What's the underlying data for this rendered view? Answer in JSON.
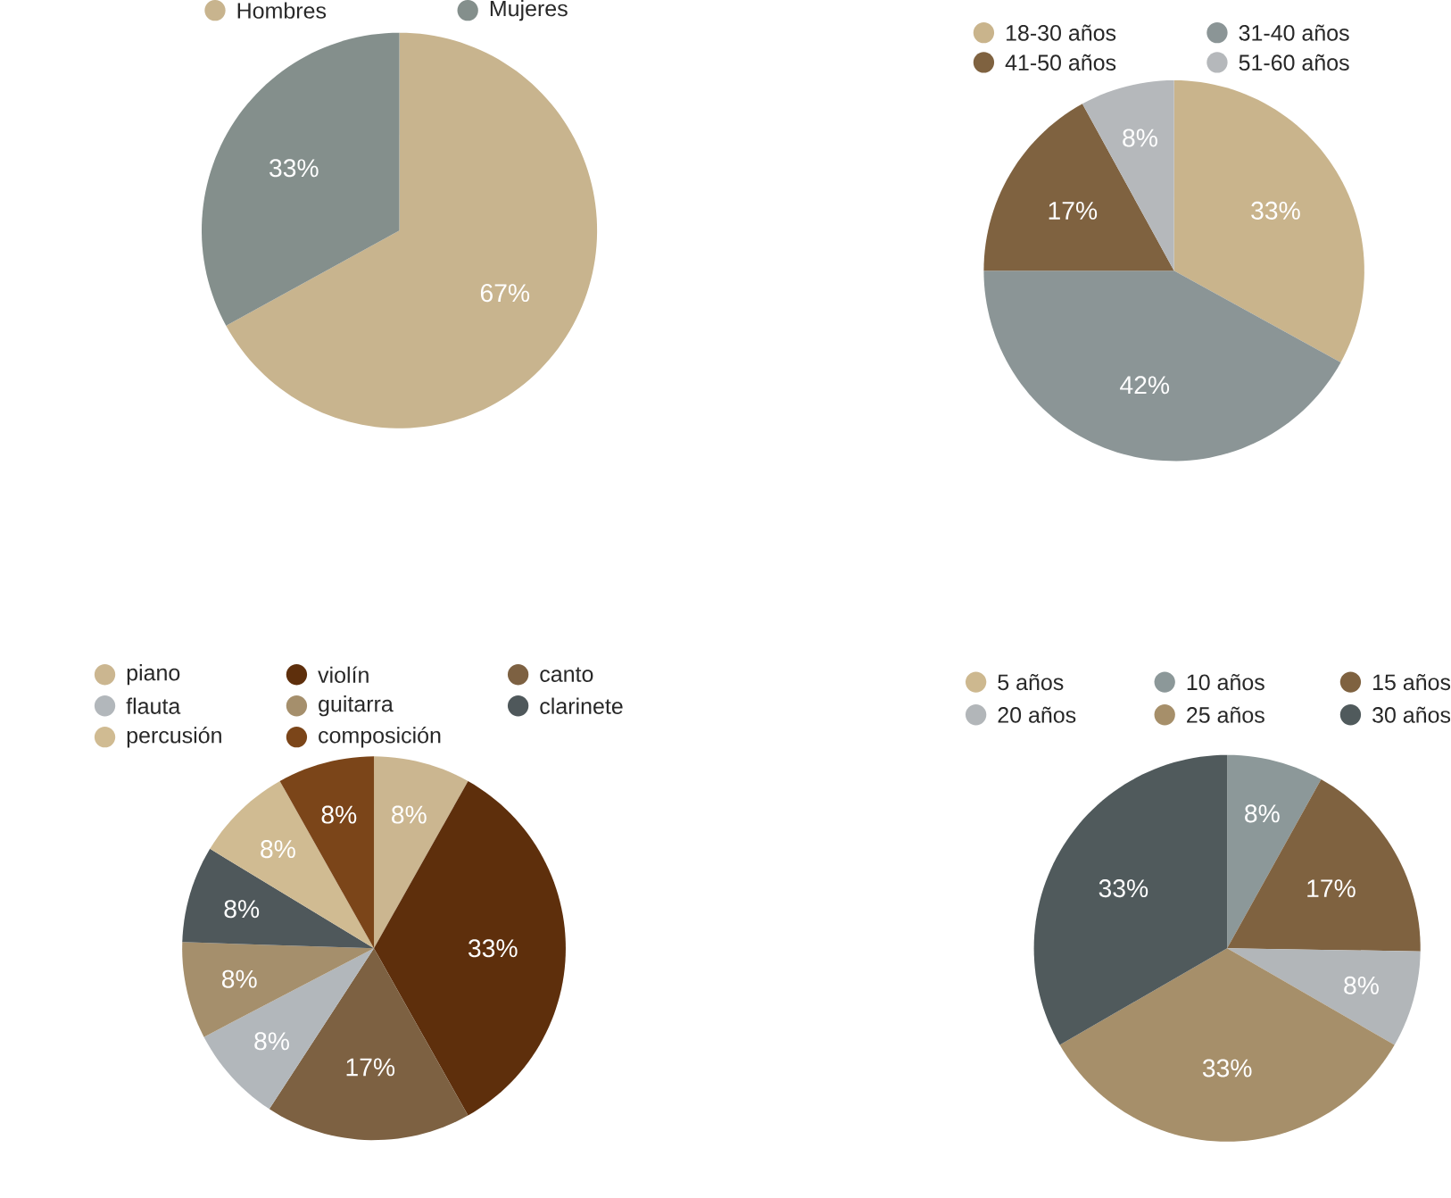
{
  "chart_data": [
    {
      "type": "pie",
      "categories": [
        "Hombres",
        "Mujeres"
      ],
      "values": [
        67,
        33
      ],
      "colors": [
        "#c8b48e",
        "#848f8c"
      ],
      "value_labels": [
        "67%",
        "33%"
      ],
      "legend": "top"
    },
    {
      "type": "pie",
      "categories": [
        "18-30 años",
        "31-40 años",
        "41-50 años",
        "51-60 años"
      ],
      "values": [
        33,
        42,
        17,
        8
      ],
      "colors": [
        "#c9b48c",
        "#8b9596",
        "#7f6240",
        "#b5b8bb"
      ],
      "value_labels": [
        "33%",
        "42%",
        "17%",
        "8%"
      ],
      "legend": "top"
    },
    {
      "type": "pie",
      "categories": [
        "piano",
        "violín",
        "canto",
        "flauta",
        "guitarra",
        "clarinete",
        "percusión",
        "composición"
      ],
      "values": [
        8,
        33,
        17,
        8,
        8,
        8,
        8,
        8
      ],
      "colors": [
        "#cbb690",
        "#5e2f0c",
        "#7d6142",
        "#b2b7bb",
        "#a58f6c",
        "#4f585b",
        "#d0bb92",
        "#7b4519"
      ],
      "value_labels": [
        "8%",
        "33%",
        "17%",
        "8%",
        "8%",
        "8%",
        "8%",
        "8%"
      ],
      "legend": "top"
    },
    {
      "type": "pie",
      "categories": [
        "5 años",
        "10 años",
        "15 años",
        "20 años",
        "25 años",
        "30 años"
      ],
      "values": [
        0,
        8,
        17,
        8,
        33,
        33
      ],
      "colors": [
        "#cdb88f",
        "#8c9899",
        "#7f6240",
        "#b2b6b9",
        "#a68f6a",
        "#505a5c"
      ],
      "value_labels": [
        null,
        "8%",
        "17%",
        "8%",
        "33%",
        "33%"
      ],
      "legend": "top"
    }
  ]
}
